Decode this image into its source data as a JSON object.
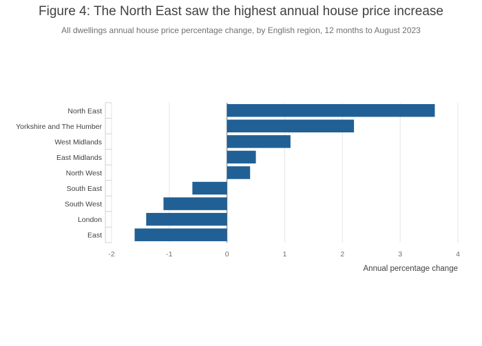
{
  "chart_data": {
    "type": "bar",
    "orientation": "horizontal",
    "title": "Figure 4: The North East saw the highest annual house price increase",
    "subtitle": "All dwellings annual house price percentage change, by English region, 12 months to August 2023",
    "categories": [
      "North East",
      "Yorkshire and The Humber",
      "West Midlands",
      "East Midlands",
      "North West",
      "South East",
      "South West",
      "London",
      "East"
    ],
    "values": [
      3.6,
      2.2,
      1.1,
      0.5,
      0.4,
      -0.6,
      -1.1,
      -1.4,
      -1.6
    ],
    "xlabel": "Annual percentage change",
    "ylabel": "",
    "xlim": [
      -2,
      4
    ],
    "xticks": [
      -2,
      -1,
      0,
      1,
      2,
      3,
      4
    ],
    "bar_color": "#206095",
    "grid": true
  }
}
